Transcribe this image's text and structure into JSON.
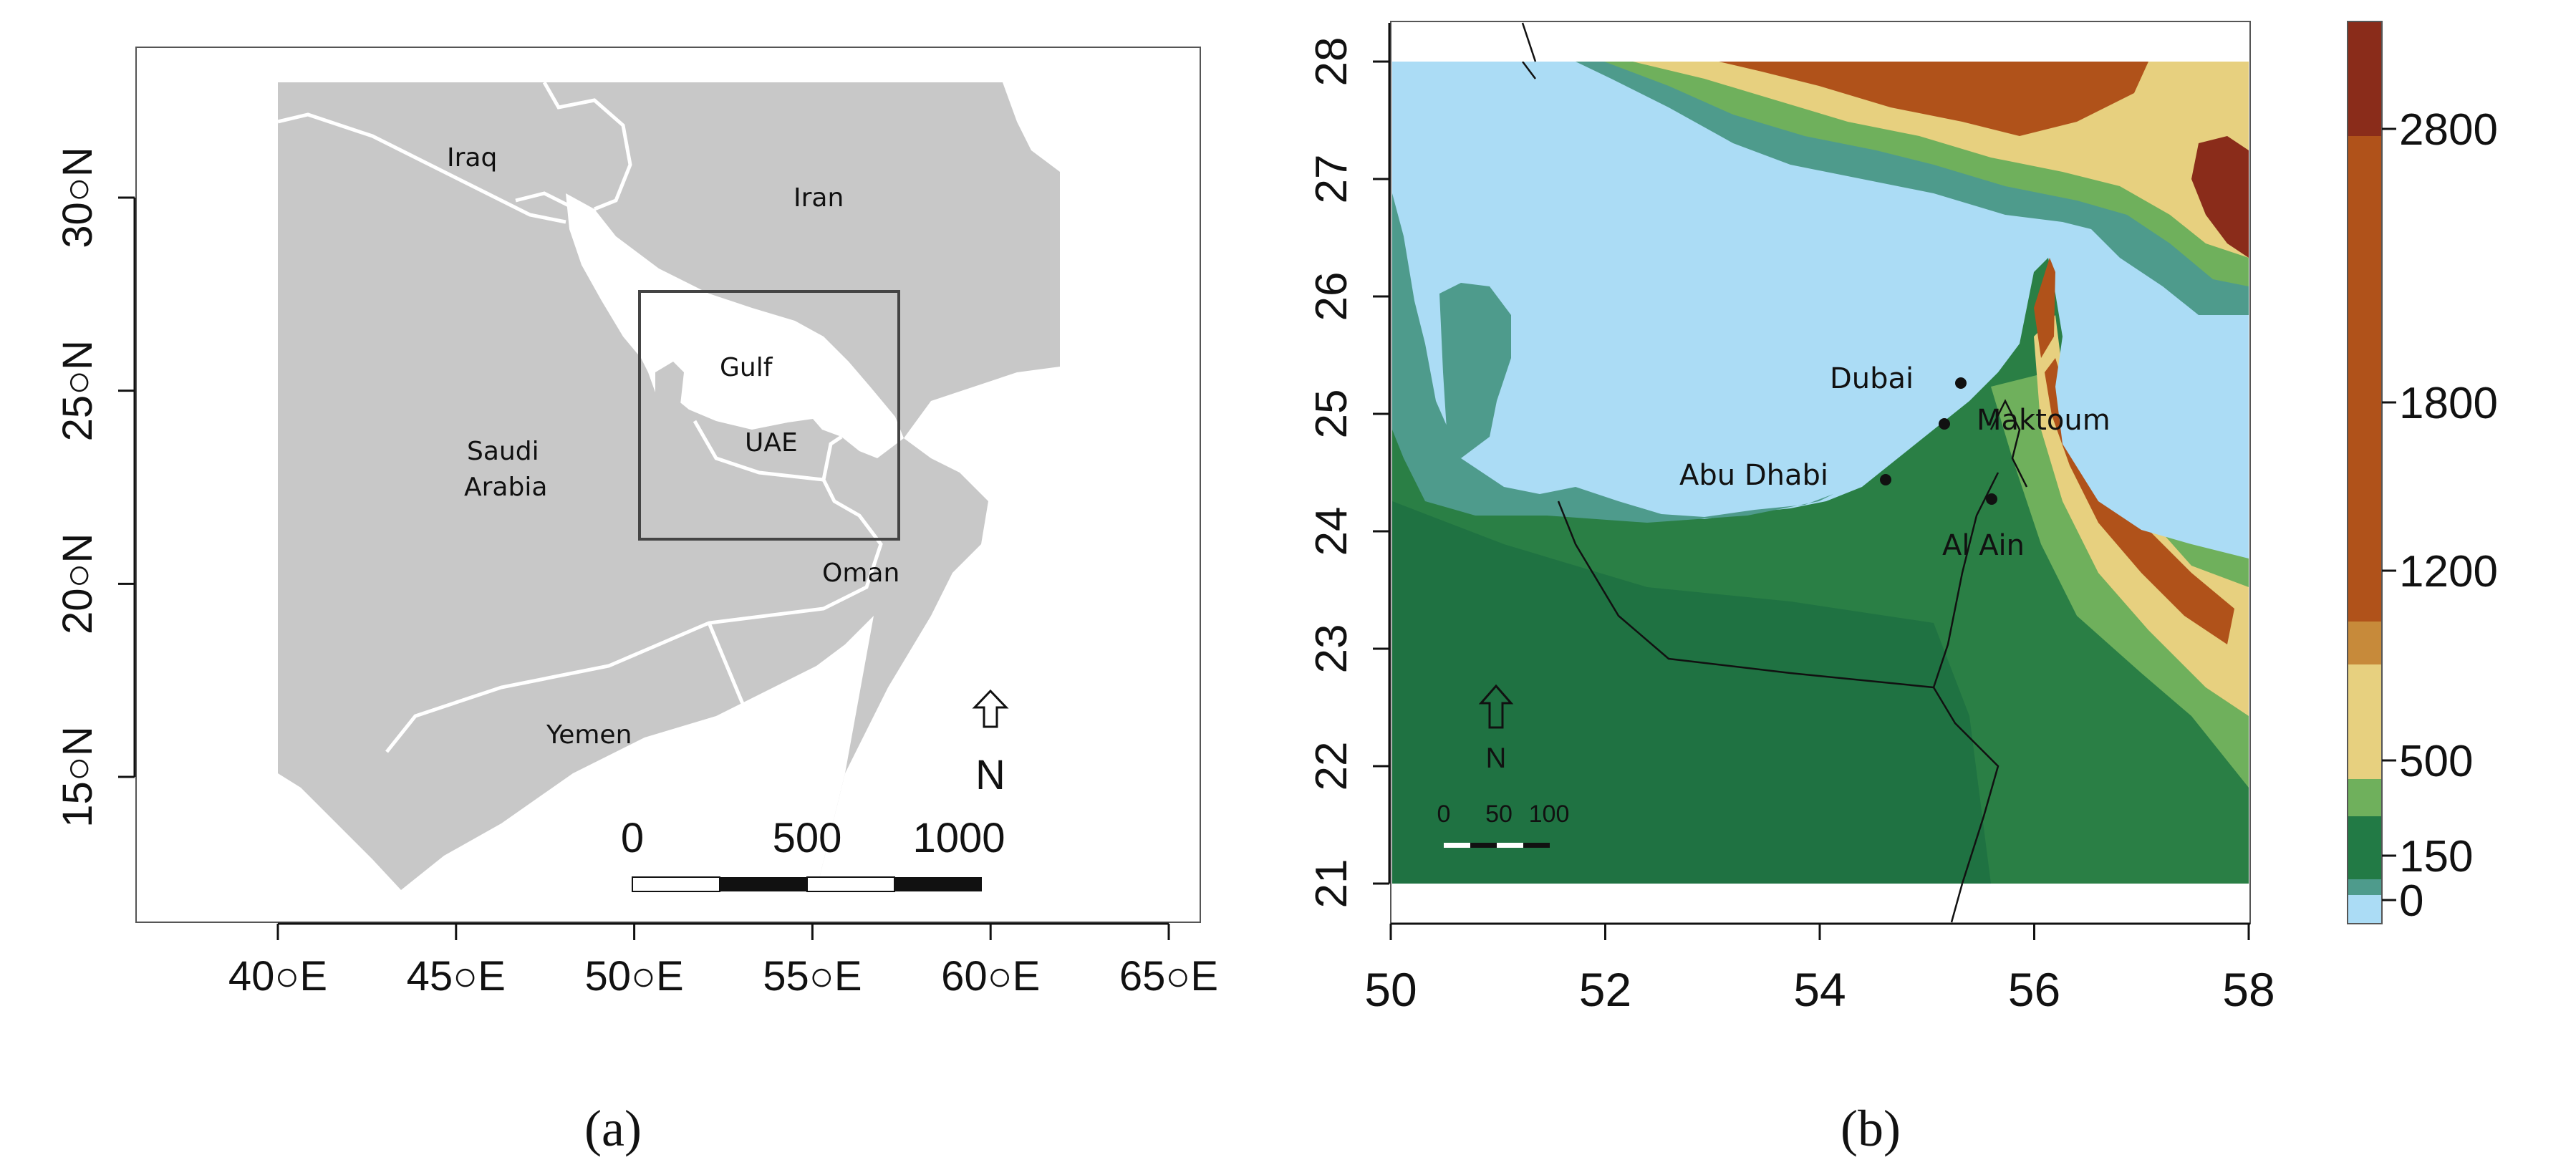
{
  "panel_a": {
    "label": "(a)",
    "x_ticks": [
      "40○E",
      "45○E",
      "50○E",
      "55○E",
      "60○E",
      "65○E"
    ],
    "y_ticks": [
      "15○N",
      "20○N",
      "25○N",
      "30○N"
    ],
    "places": {
      "iraq": "Iraq",
      "iran": "Iran",
      "gulf": "Gulf",
      "uae": "UAE",
      "saudi_line1": "Saudi",
      "saudi_line2": "Arabia",
      "oman": "Oman",
      "yemen": "Yemen"
    },
    "north": "N",
    "scale_labels": [
      "0",
      "500",
      "1000"
    ]
  },
  "panel_b": {
    "label": "(b)",
    "x_ticks": [
      "50",
      "52",
      "54",
      "56",
      "58"
    ],
    "y_ticks": [
      "21",
      "22",
      "23",
      "24",
      "25",
      "26",
      "27",
      "28"
    ],
    "cities": {
      "dubai": "Dubai",
      "maktoum": "Maktoum",
      "abu_dhabi": "Abu Dhabi",
      "al_ain": "Al Ain"
    },
    "north": "N",
    "scale_labels": [
      "0",
      "50",
      "100"
    ],
    "legend_labels": [
      "2800",
      "1800",
      "1200",
      "500",
      "150",
      "0"
    ],
    "colors": {
      "sea": "#abdcf5",
      "shelf": "#4e9b8c",
      "lowland": "#227a45",
      "plain": "#2e8a48",
      "hill": "#6fb05c",
      "upland": "#e7d07f",
      "mid": "#c78a3a",
      "mountain": "#b0521a",
      "peak": "#8a2c1a"
    }
  }
}
